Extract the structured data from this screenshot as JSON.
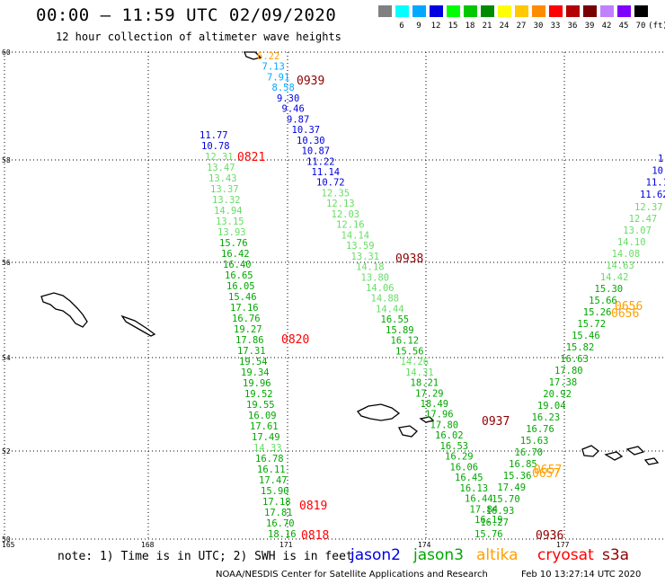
{
  "header": {
    "title": "00:00 – 11:59 UTC 02/09/2020",
    "subtitle": "12 hour collection of altimeter wave heights"
  },
  "color_scale": {
    "unit_label": "(ft)",
    "bins": [
      {
        "label": "3",
        "color": "#808080"
      },
      {
        "label": "6",
        "color": "#00ffff"
      },
      {
        "label": "9",
        "color": "#00a8ff"
      },
      {
        "label": "12",
        "color": "#0000e0"
      },
      {
        "label": "15",
        "color": "#00ff00"
      },
      {
        "label": "18",
        "color": "#00c800"
      },
      {
        "label": "21",
        "color": "#008c00"
      },
      {
        "label": "24",
        "color": "#ffff00"
      },
      {
        "label": "27",
        "color": "#ffc800"
      },
      {
        "label": "30",
        "color": "#ff8c00"
      },
      {
        "label": "33",
        "color": "#ff0000"
      },
      {
        "label": "36",
        "color": "#b40000"
      },
      {
        "label": "39",
        "color": "#780000"
      },
      {
        "label": "42",
        "color": "#c080ff"
      },
      {
        "label": "45",
        "color": "#8000ff"
      },
      {
        "label": "70",
        "color": "#000000"
      }
    ]
  },
  "map": {
    "lat_labels": [
      "60",
      "58",
      "56",
      "54",
      "52",
      "50"
    ],
    "lon_labels": [
      "165",
      "168",
      "171",
      "174",
      "177"
    ]
  },
  "tracks": [
    {
      "satellite": "jason3",
      "time_labels": [
        {
          "text": "0821",
          "color": "#ff0000"
        },
        {
          "text": "0820",
          "color": "#ff0000"
        },
        {
          "text": "0819",
          "color": "#ff0000"
        },
        {
          "text": "0818",
          "color": "#ff0000"
        }
      ],
      "values": [
        {
          "text": "11.77",
          "color": "#0000e0"
        },
        {
          "text": "10.78",
          "color": "#0000e0"
        },
        {
          "text": "12.31",
          "color": "#66dd66"
        },
        {
          "text": "13.47",
          "color": "#66dd66"
        },
        {
          "text": "13.43",
          "color": "#66dd66"
        },
        {
          "text": "13.37",
          "color": "#66dd66"
        },
        {
          "text": "13.32",
          "color": "#66dd66"
        },
        {
          "text": "14.94",
          "color": "#66dd66"
        },
        {
          "text": "13.15",
          "color": "#66dd66"
        },
        {
          "text": "13.93",
          "color": "#66dd66"
        },
        {
          "text": "15.76",
          "color": "#00a800"
        },
        {
          "text": "16.42",
          "color": "#00a800"
        },
        {
          "text": "16.40",
          "color": "#00a800"
        },
        {
          "text": "16.65",
          "color": "#00a800"
        },
        {
          "text": "16.05",
          "color": "#00a800"
        },
        {
          "text": "15.46",
          "color": "#00a800"
        },
        {
          "text": "17.16",
          "color": "#00a800"
        },
        {
          "text": "16.76",
          "color": "#00a800"
        },
        {
          "text": "19.27",
          "color": "#00a800"
        },
        {
          "text": "17.86",
          "color": "#00a800"
        },
        {
          "text": "17.31",
          "color": "#00a800"
        },
        {
          "text": "19.54",
          "color": "#00a800"
        },
        {
          "text": "19.34",
          "color": "#00a800"
        },
        {
          "text": "19.96",
          "color": "#00a800"
        },
        {
          "text": "19.52",
          "color": "#00a800"
        },
        {
          "text": "19.55",
          "color": "#00a800"
        },
        {
          "text": "16.09",
          "color": "#00a800"
        },
        {
          "text": "17.61",
          "color": "#00a800"
        },
        {
          "text": "17.49",
          "color": "#00a800"
        },
        {
          "text": "14.33",
          "color": "#66dd66"
        },
        {
          "text": "16.78",
          "color": "#00a800"
        },
        {
          "text": "16.11",
          "color": "#00a800"
        },
        {
          "text": "17.47",
          "color": "#00a800"
        },
        {
          "text": "15.90",
          "color": "#00a800"
        },
        {
          "text": "17.18",
          "color": "#00a800"
        },
        {
          "text": "17.81",
          "color": "#00a800"
        },
        {
          "text": "16.70",
          "color": "#00a800"
        },
        {
          "text": "18.16",
          "color": "#00a800"
        }
      ]
    },
    {
      "satellite": "jason2",
      "time_labels": [
        {
          "text": "0939",
          "color": "#900000"
        },
        {
          "text": "0938",
          "color": "#900000"
        },
        {
          "text": "0937",
          "color": "#900000"
        },
        {
          "text": "0936",
          "color": "#900000"
        }
      ],
      "values": [
        {
          "text": "6.22",
          "color": "#ffa000"
        },
        {
          "text": "7.13",
          "color": "#00a8ff"
        },
        {
          "text": "7.91",
          "color": "#00a8ff"
        },
        {
          "text": "8.58",
          "color": "#00a8ff"
        },
        {
          "text": "9.30",
          "color": "#0000e0"
        },
        {
          "text": "9.46",
          "color": "#0000e0"
        },
        {
          "text": "9.87",
          "color": "#0000e0"
        },
        {
          "text": "10.37",
          "color": "#0000e0"
        },
        {
          "text": "10.30",
          "color": "#0000e0"
        },
        {
          "text": "10.87",
          "color": "#0000e0"
        },
        {
          "text": "11.22",
          "color": "#0000e0"
        },
        {
          "text": "11.14",
          "color": "#0000e0"
        },
        {
          "text": "10.72",
          "color": "#0000e0"
        },
        {
          "text": "12.35",
          "color": "#66dd66"
        },
        {
          "text": "12.13",
          "color": "#66dd66"
        },
        {
          "text": "12.03",
          "color": "#66dd66"
        },
        {
          "text": "12.16",
          "color": "#66dd66"
        },
        {
          "text": "14.14",
          "color": "#66dd66"
        },
        {
          "text": "13.59",
          "color": "#66dd66"
        },
        {
          "text": "13.31",
          "color": "#66dd66"
        },
        {
          "text": "14.18",
          "color": "#66dd66"
        },
        {
          "text": "13.80",
          "color": "#66dd66"
        },
        {
          "text": "14.06",
          "color": "#66dd66"
        },
        {
          "text": "14.88",
          "color": "#66dd66"
        },
        {
          "text": "14.44",
          "color": "#66dd66"
        },
        {
          "text": "16.55",
          "color": "#00a800"
        },
        {
          "text": "15.89",
          "color": "#00a800"
        },
        {
          "text": "16.12",
          "color": "#00a800"
        },
        {
          "text": "15.56",
          "color": "#00a800"
        },
        {
          "text": "14.26",
          "color": "#66dd66"
        },
        {
          "text": "14.31",
          "color": "#66dd66"
        },
        {
          "text": "18.21",
          "color": "#00a800"
        },
        {
          "text": "17.29",
          "color": "#00a800"
        },
        {
          "text": "18.49",
          "color": "#00a800"
        },
        {
          "text": "17.96",
          "color": "#00a800"
        },
        {
          "text": "17.80",
          "color": "#00a800"
        },
        {
          "text": "16.02",
          "color": "#00a800"
        },
        {
          "text": "16.53",
          "color": "#00a800"
        },
        {
          "text": "16.29",
          "color": "#00a800"
        },
        {
          "text": "16.06",
          "color": "#00a800"
        },
        {
          "text": "16.45",
          "color": "#00a800"
        },
        {
          "text": "16.13",
          "color": "#00a800"
        },
        {
          "text": "16.44",
          "color": "#00a800"
        },
        {
          "text": "17.84",
          "color": "#00a800"
        },
        {
          "text": "16.19",
          "color": "#00a800"
        }
      ]
    },
    {
      "satellite": "jason3-ascending",
      "time_labels": [],
      "values": [
        {
          "text": "15.76",
          "color": "#00a800"
        },
        {
          "text": "16.27",
          "color": "#00a800"
        },
        {
          "text": "16.93",
          "color": "#00a800"
        },
        {
          "text": "15.70",
          "color": "#00a800"
        },
        {
          "text": "17.49",
          "color": "#00a800"
        },
        {
          "text": "15.36",
          "color": "#00a800"
        },
        {
          "text": "16.85",
          "color": "#00a800"
        },
        {
          "text": "16.70",
          "color": "#00a800"
        },
        {
          "text": "15.63",
          "color": "#00a800"
        },
        {
          "text": "16.76",
          "color": "#00a800"
        },
        {
          "text": "16.23",
          "color": "#00a800"
        },
        {
          "text": "19.04",
          "color": "#00a800"
        },
        {
          "text": "20.92",
          "color": "#00a800"
        },
        {
          "text": "17.38",
          "color": "#00a800"
        },
        {
          "text": "17.80",
          "color": "#00a800"
        },
        {
          "text": "16.63",
          "color": "#00a800"
        },
        {
          "text": "15.82",
          "color": "#00a800"
        },
        {
          "text": "15.46",
          "color": "#00a800"
        },
        {
          "text": "15.72",
          "color": "#00a800"
        },
        {
          "text": "15.26",
          "color": "#00a800"
        },
        {
          "text": "15.66",
          "color": "#00a800"
        },
        {
          "text": "15.30",
          "color": "#00a800"
        },
        {
          "text": "14.42",
          "color": "#66dd66"
        },
        {
          "text": "14.63",
          "color": "#66dd66"
        },
        {
          "text": "14.08",
          "color": "#66dd66"
        },
        {
          "text": "14.10",
          "color": "#66dd66"
        },
        {
          "text": "13.07",
          "color": "#66dd66"
        },
        {
          "text": "12.47",
          "color": "#66dd66"
        },
        {
          "text": "12.37",
          "color": "#66dd66"
        }
      ]
    },
    {
      "satellite": "jason2-ascending",
      "time_labels": [],
      "values": [
        {
          "text": "11.62",
          "color": "#0000e0"
        },
        {
          "text": "11.1",
          "color": "#0000e0"
        },
        {
          "text": "10",
          "color": "#0000e0"
        },
        {
          "text": "1",
          "color": "#0000e0"
        }
      ]
    },
    {
      "satellite": "altika",
      "time_labels": [
        {
          "text": "0656",
          "color": "#ffa000"
        },
        {
          "text": "0656",
          "color": "#ffa000"
        },
        {
          "text": "0657",
          "color": "#ffa000"
        },
        {
          "text": "0657",
          "color": "#ffa000"
        }
      ],
      "values": []
    }
  ],
  "legend": {
    "note": "note: 1) Time is in UTC; 2) SWH is in feet",
    "items": [
      {
        "label": "jason2",
        "color": "#0000e0"
      },
      {
        "label": "jason3",
        "color": "#00a800"
      },
      {
        "label": "altika",
        "color": "#ffa000"
      },
      {
        "label": "cryosat",
        "color": "#ff0000"
      },
      {
        "label": "s3a",
        "color": "#900000"
      }
    ]
  },
  "footer": {
    "credit": "NOAA/NESDIS Center for Satellite Applications and Research",
    "timestamp": "Feb 10 13:27:14 UTC 2020"
  }
}
